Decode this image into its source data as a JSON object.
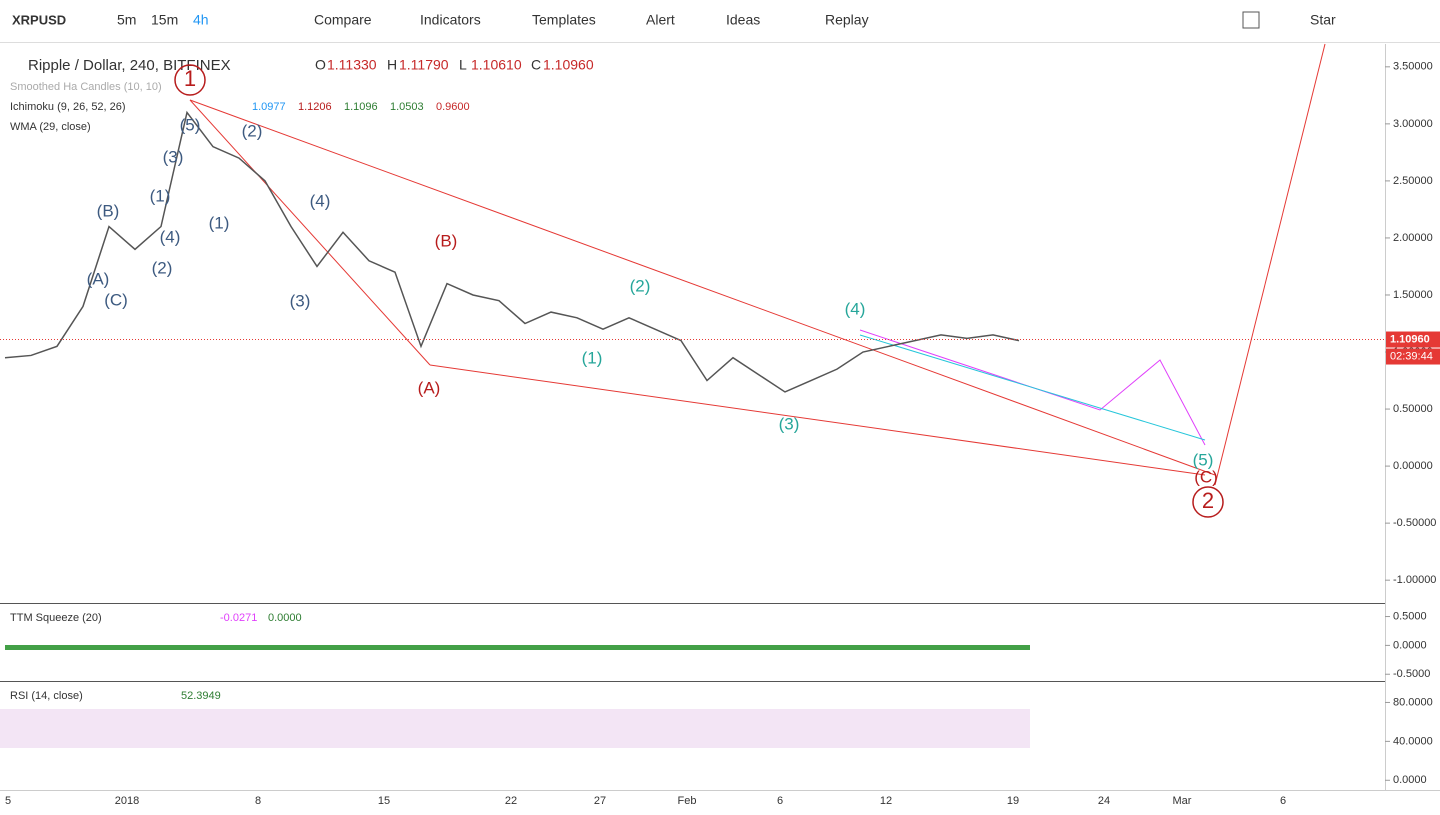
{
  "toolbar": {
    "symbol": "XRPUSD",
    "intervals": [
      "5m",
      "15m",
      "4h"
    ],
    "buttons": [
      "Compare",
      "Indicators",
      "Templates",
      "Alert",
      "Ideas",
      "Replay"
    ],
    "star": "Star"
  },
  "chart_data": {
    "type": "line",
    "title": "Ripple / Dollar, 240, BITFINEX",
    "ohlc": [
      {
        "label": "O",
        "value": "1.11330"
      },
      {
        "label": "H",
        "value": "1.11790"
      },
      {
        "label": "L",
        "value": "1.10610"
      },
      {
        "label": "C",
        "value": "1.10960"
      }
    ],
    "studies": [
      {
        "name": "Smoothed Ha Candles (10, 10)",
        "values": []
      },
      {
        "name": "Ichimoku (9, 26, 52, 26)",
        "values": [
          "1.0977",
          "1.1206",
          "1.1096",
          "1.0503",
          "0.9600"
        ]
      },
      {
        "name": "WMA (29, close)",
        "values": []
      }
    ],
    "close": {
      "name": "Close",
      "color": "#555555",
      "values": [
        0.95,
        0.97,
        1.05,
        1.4,
        2.1,
        1.9,
        2.1,
        3.1,
        2.8,
        2.7,
        2.5,
        2.1,
        1.75,
        2.05,
        1.8,
        1.7,
        1.05,
        1.6,
        1.5,
        1.45,
        1.25,
        1.35,
        1.3,
        1.2,
        1.3,
        1.2,
        1.1,
        0.75,
        0.95,
        0.8,
        0.65,
        0.75,
        0.85,
        1.0,
        1.05,
        1.1,
        1.15,
        1.12,
        1.15,
        1.1
      ]
    },
    "ylim": [
      -1.2,
      3.7
    ],
    "yticks": [
      {
        "value": 3.5,
        "label": "3.50000"
      },
      {
        "value": 3,
        "label": "3.00000"
      },
      {
        "value": 2.5,
        "label": "2.50000"
      },
      {
        "value": 2,
        "label": "2.00000"
      },
      {
        "value": 1.5,
        "label": "1.50000"
      },
      {
        "value": 1,
        "label": "1.00000"
      },
      {
        "value": 0.5,
        "label": "0.50000"
      },
      {
        "value": 0,
        "label": "0.00000"
      },
      {
        "value": -0.5,
        "label": "-0.50000"
      },
      {
        "value": -1,
        "label": "-1.00000"
      }
    ],
    "last_price": {
      "value": 1.1096,
      "label": "1.10960"
    },
    "countdown": "02:39:44",
    "x_labels": [
      "5",
      "2018",
      "8",
      "15",
      "22",
      "27",
      "Feb",
      "6",
      "12",
      "19",
      "24",
      "Mar",
      "6"
    ],
    "annotations": [
      {
        "text": "1",
        "color": "#b71c1c"
      },
      {
        "text": "(5)",
        "color": "#3d5a80"
      },
      {
        "text": "(2)",
        "color": "#3d5a80"
      },
      {
        "text": "(3)",
        "color": "#3d5a80"
      },
      {
        "text": "(1)",
        "color": "#3d5a80"
      },
      {
        "text": "(B)",
        "color": "#3d5a80"
      },
      {
        "text": "(4)",
        "color": "#3d5a80"
      },
      {
        "text": "(2)",
        "color": "#3d5a80"
      },
      {
        "text": "(A)",
        "color": "#3d5a80"
      },
      {
        "text": "(C)",
        "color": "#3d5a80"
      },
      {
        "text": "(1)",
        "color": "#3d5a80"
      },
      {
        "text": "(4)",
        "color": "#3d5a80"
      },
      {
        "text": "(3)",
        "color": "#3d5a80"
      },
      {
        "text": "(B)",
        "color": "#b71c1c"
      },
      {
        "text": "(A)",
        "color": "#b71c1c"
      },
      {
        "text": "(2)",
        "color": "#26a69a"
      },
      {
        "text": "(1)",
        "color": "#26a69a"
      },
      {
        "text": "(4)",
        "color": "#26a69a"
      },
      {
        "text": "(3)",
        "color": "#26a69a"
      },
      {
        "text": "(5)",
        "color": "#26a69a"
      },
      {
        "text": "(C)",
        "color": "#b71c1c"
      },
      {
        "text": "2",
        "color": "#b71c1c"
      }
    ]
  },
  "ttm": {
    "name": "TTM Squeeze (20)",
    "values": [
      "-0.0271",
      "0.0000"
    ],
    "yticks": [
      {
        "value": 0.5,
        "label": "0.5000"
      },
      {
        "value": 0,
        "label": "0.0000"
      },
      {
        "value": -0.5,
        "label": "-0.5000"
      }
    ],
    "ylim": [
      -0.6,
      0.7
    ]
  },
  "rsi": {
    "name": "RSI (14, close)",
    "values": [
      "52.3949"
    ],
    "yticks": [
      {
        "value": 80,
        "label": "80.0000"
      },
      {
        "value": 40,
        "label": "40.0000"
      },
      {
        "value": 0,
        "label": "0.0000"
      }
    ],
    "ylim": [
      -10,
      100
    ]
  }
}
